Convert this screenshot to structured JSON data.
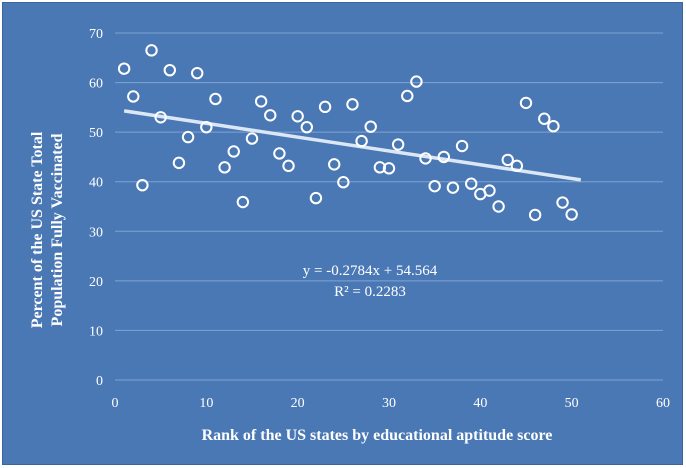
{
  "chart_data": {
    "type": "scatter",
    "xlabel": "Rank of the US states by educational  aptitude score",
    "ylabel_lines": [
      "Percent of the US State Total",
      "Population  Fully Vaccinated"
    ],
    "xlim": [
      0,
      60
    ],
    "ylim": [
      0,
      70
    ],
    "xticks": [
      0,
      10,
      20,
      30,
      40,
      50,
      60
    ],
    "yticks": [
      0,
      10,
      20,
      30,
      40,
      50,
      60,
      70
    ],
    "grid": "horizontal",
    "marker": "hollow-circle",
    "series": [
      {
        "x": [
          1,
          2,
          3,
          4,
          5,
          6,
          7,
          8,
          9,
          10,
          11,
          12,
          13,
          14,
          15,
          16,
          17,
          18,
          19,
          20,
          21,
          22,
          23,
          24,
          25,
          26,
          27,
          28,
          29,
          30,
          31,
          32,
          33,
          34,
          35,
          36,
          37,
          38,
          39,
          40,
          41,
          42,
          43,
          44,
          45,
          46,
          47,
          48,
          49,
          50
        ],
        "y": [
          62.8,
          57.2,
          39.3,
          66.5,
          53.0,
          62.5,
          43.8,
          49.0,
          61.9,
          51.0,
          56.7,
          42.9,
          46.1,
          35.9,
          48.7,
          56.2,
          53.4,
          45.7,
          43.2,
          53.2,
          51.0,
          36.7,
          55.1,
          43.5,
          39.9,
          55.6,
          48.2,
          51.1,
          42.9,
          42.7,
          47.5,
          57.3,
          60.2,
          44.7,
          39.1,
          45.0,
          38.8,
          47.2,
          39.6,
          37.5,
          38.2,
          35.0,
          44.4,
          43.2,
          55.9,
          33.3,
          52.7,
          51.2,
          35.8,
          33.4
        ]
      }
    ],
    "trendline": {
      "equation": "y = -0.2784x + 54.564",
      "r2_text": "R² = 0.2283",
      "slope": -0.2784,
      "intercept": 54.564,
      "x_range": [
        1,
        51
      ]
    },
    "colors": {
      "background": "#4a78b5",
      "marks": "#ffffff",
      "grid": "#7fa3d1",
      "trendline": "#dce7f5"
    }
  }
}
